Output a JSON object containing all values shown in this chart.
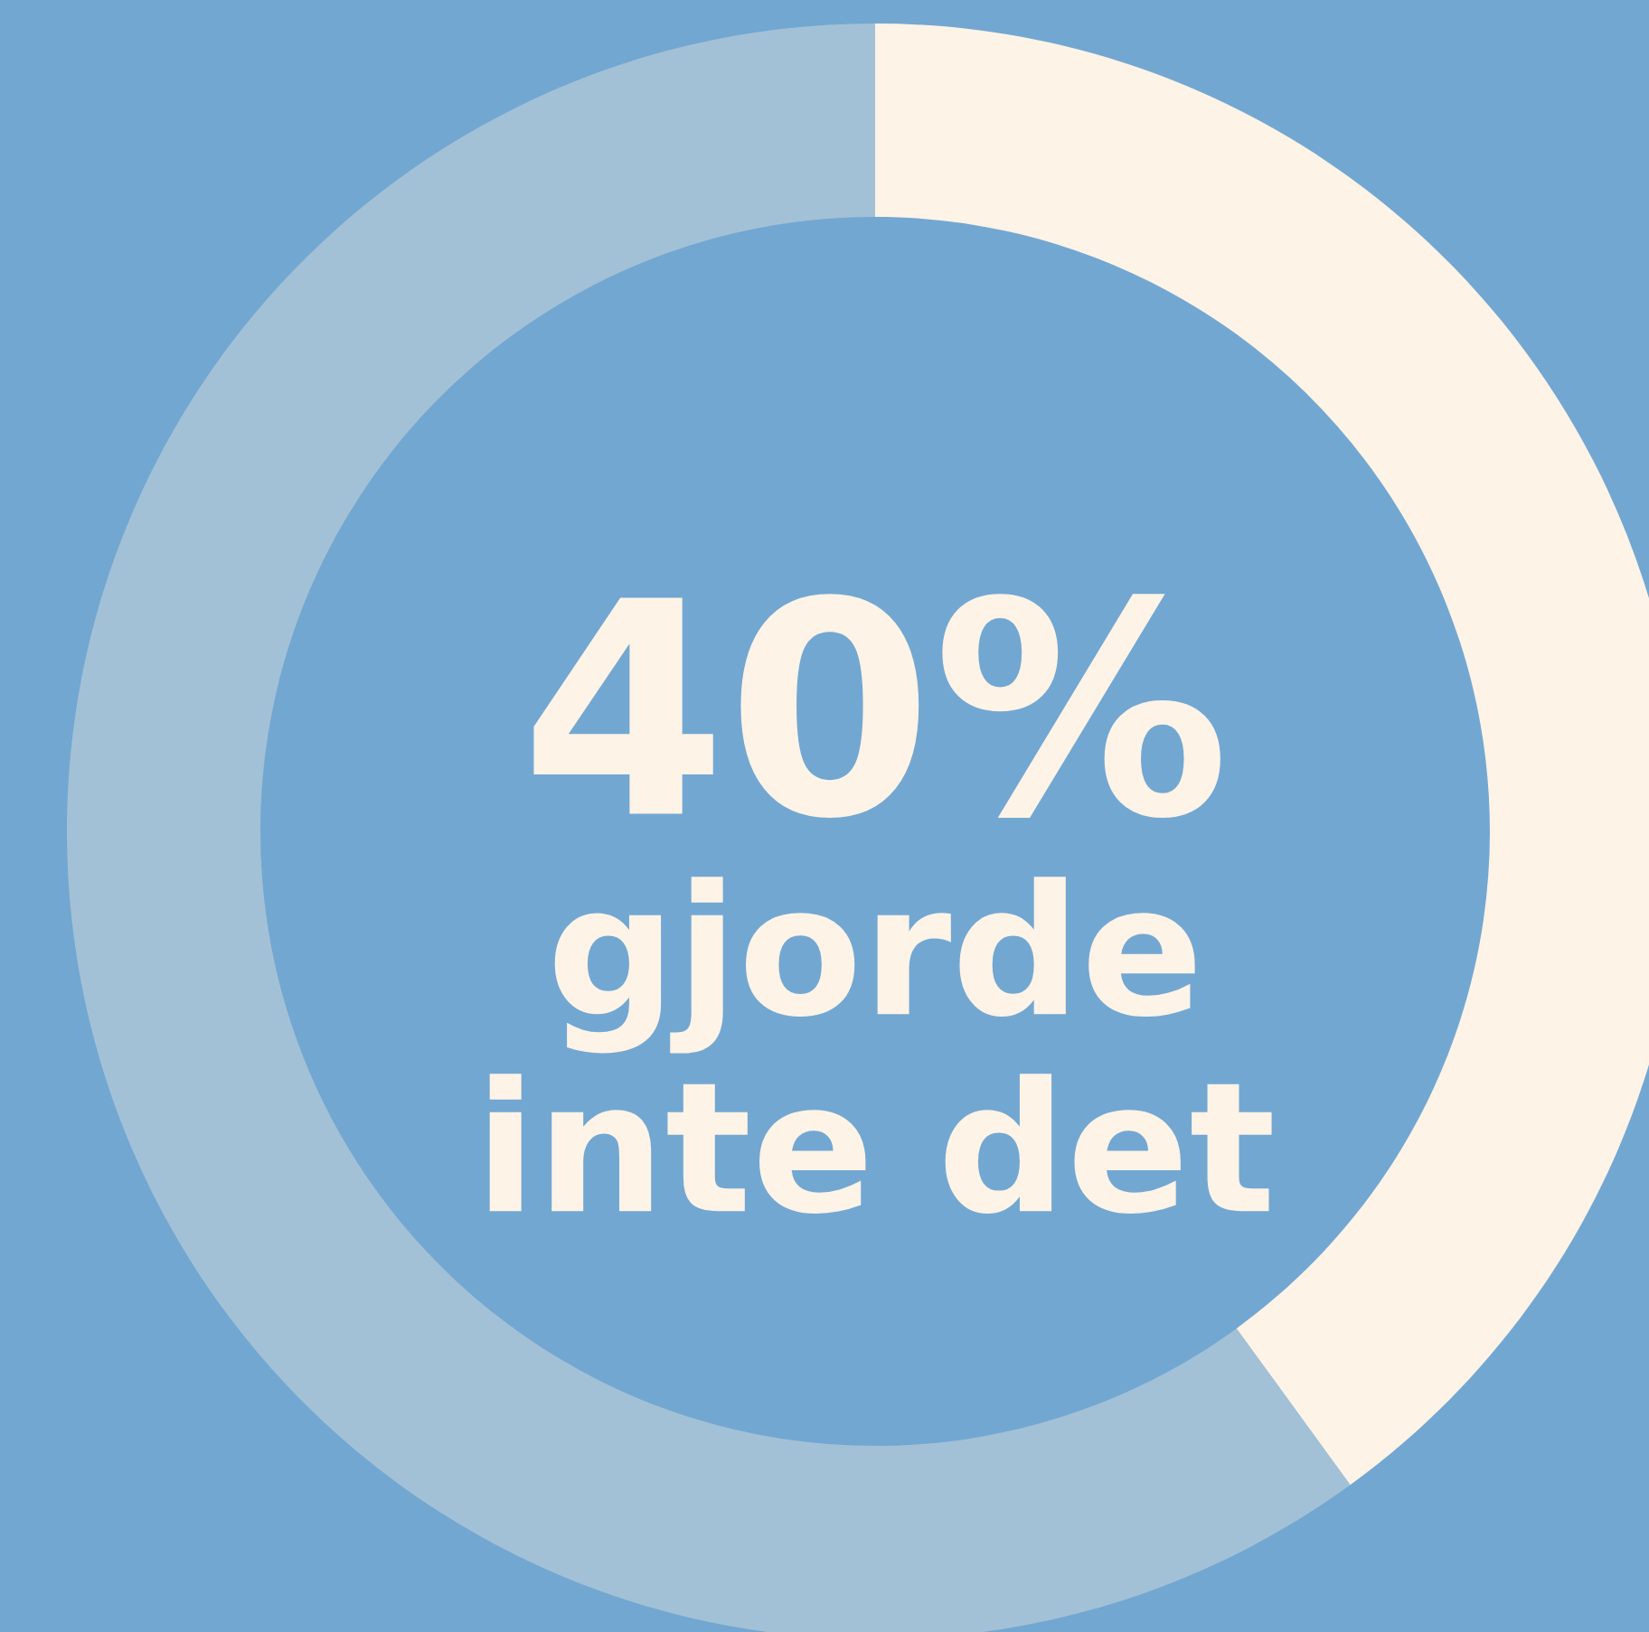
{
  "chart_data": {
    "type": "donut",
    "categories": [
      null,
      null
    ],
    "values": [
      40,
      60
    ],
    "colors": [
      "#fdf3e6",
      "#a3c1d6"
    ],
    "annotations": [
      "40%",
      "gjorde\ninte det"
    ]
  }
}
